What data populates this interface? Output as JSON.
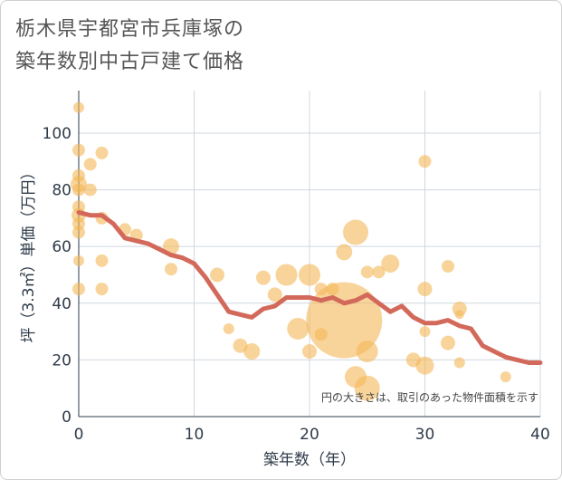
{
  "title_line1": "栃木県宇都宮市兵庫塚の",
  "title_line2": "築年数別中古戸建て価格",
  "chart_data": {
    "type": "scatter",
    "title": "栃木県宇都宮市兵庫塚の築年数別中古戸建て価格",
    "xlabel": "築年数（年）",
    "ylabel": "坪（3.3㎡）単価（万円）",
    "xlim": [
      0,
      40
    ],
    "ylim": [
      0,
      115
    ],
    "xticks": [
      0,
      10,
      20,
      30,
      40
    ],
    "yticks": [
      0,
      20,
      40,
      60,
      80,
      100
    ],
    "grid": true,
    "note": "円の大きさは、取引のあった物件面積を示す",
    "colors": {
      "bubble": "#f3b757",
      "line": "#d2695a",
      "grid": "#cfd8e0"
    },
    "series": [
      {
        "type": "bubble",
        "points": [
          {
            "x": 0,
            "y": 109,
            "s": 6
          },
          {
            "x": 0,
            "y": 94,
            "s": 7
          },
          {
            "x": 0,
            "y": 85,
            "s": 7
          },
          {
            "x": 0,
            "y": 82,
            "s": 9
          },
          {
            "x": 0,
            "y": 80,
            "s": 7
          },
          {
            "x": 0,
            "y": 74,
            "s": 7
          },
          {
            "x": 0,
            "y": 71,
            "s": 8
          },
          {
            "x": 0,
            "y": 68,
            "s": 7
          },
          {
            "x": 0,
            "y": 65,
            "s": 7
          },
          {
            "x": 0,
            "y": 55,
            "s": 6
          },
          {
            "x": 0,
            "y": 45,
            "s": 7
          },
          {
            "x": 1,
            "y": 89,
            "s": 7
          },
          {
            "x": 1,
            "y": 80,
            "s": 7
          },
          {
            "x": 2,
            "y": 93,
            "s": 7
          },
          {
            "x": 2,
            "y": 70,
            "s": 7
          },
          {
            "x": 2,
            "y": 55,
            "s": 7
          },
          {
            "x": 2,
            "y": 45,
            "s": 7
          },
          {
            "x": 4,
            "y": 66,
            "s": 7
          },
          {
            "x": 5,
            "y": 64,
            "s": 7
          },
          {
            "x": 8,
            "y": 60,
            "s": 9
          },
          {
            "x": 8,
            "y": 52,
            "s": 7
          },
          {
            "x": 12,
            "y": 50,
            "s": 8
          },
          {
            "x": 13,
            "y": 31,
            "s": 6
          },
          {
            "x": 14,
            "y": 25,
            "s": 8
          },
          {
            "x": 15,
            "y": 23,
            "s": 9
          },
          {
            "x": 16,
            "y": 49,
            "s": 8
          },
          {
            "x": 17,
            "y": 43,
            "s": 8
          },
          {
            "x": 18,
            "y": 50,
            "s": 12
          },
          {
            "x": 19,
            "y": 31,
            "s": 12
          },
          {
            "x": 20,
            "y": 50,
            "s": 12
          },
          {
            "x": 20,
            "y": 23,
            "s": 8
          },
          {
            "x": 21,
            "y": 45,
            "s": 7
          },
          {
            "x": 21,
            "y": 29,
            "s": 7
          },
          {
            "x": 22,
            "y": 45,
            "s": 7
          },
          {
            "x": 23,
            "y": 34,
            "s": 42
          },
          {
            "x": 23,
            "y": 58,
            "s": 9
          },
          {
            "x": 24,
            "y": 65,
            "s": 14
          },
          {
            "x": 24,
            "y": 14,
            "s": 12
          },
          {
            "x": 25,
            "y": 23,
            "s": 12
          },
          {
            "x": 25,
            "y": 10,
            "s": 14
          },
          {
            "x": 25,
            "y": 51,
            "s": 7
          },
          {
            "x": 26,
            "y": 51,
            "s": 7
          },
          {
            "x": 27,
            "y": 54,
            "s": 10
          },
          {
            "x": 29,
            "y": 20,
            "s": 8
          },
          {
            "x": 30,
            "y": 90,
            "s": 7
          },
          {
            "x": 30,
            "y": 45,
            "s": 8
          },
          {
            "x": 30,
            "y": 30,
            "s": 6
          },
          {
            "x": 30,
            "y": 18,
            "s": 10
          },
          {
            "x": 32,
            "y": 53,
            "s": 7
          },
          {
            "x": 32,
            "y": 26,
            "s": 8
          },
          {
            "x": 33,
            "y": 38,
            "s": 8
          },
          {
            "x": 33,
            "y": 36,
            "s": 5
          },
          {
            "x": 33,
            "y": 19,
            "s": 6
          },
          {
            "x": 37,
            "y": 14,
            "s": 6
          }
        ]
      },
      {
        "type": "line",
        "points": [
          [
            0,
            72
          ],
          [
            1,
            71
          ],
          [
            2,
            71
          ],
          [
            3,
            68
          ],
          [
            4,
            63
          ],
          [
            5,
            62
          ],
          [
            6,
            61
          ],
          [
            7,
            59
          ],
          [
            8,
            57
          ],
          [
            9,
            56
          ],
          [
            10,
            54
          ],
          [
            11,
            49
          ],
          [
            12,
            43
          ],
          [
            13,
            37
          ],
          [
            14,
            36
          ],
          [
            15,
            35
          ],
          [
            16,
            38
          ],
          [
            17,
            39
          ],
          [
            18,
            42
          ],
          [
            19,
            42
          ],
          [
            20,
            42
          ],
          [
            21,
            41
          ],
          [
            22,
            42
          ],
          [
            23,
            40
          ],
          [
            24,
            41
          ],
          [
            25,
            43
          ],
          [
            26,
            40
          ],
          [
            27,
            37
          ],
          [
            28,
            39
          ],
          [
            29,
            35
          ],
          [
            30,
            33
          ],
          [
            31,
            33
          ],
          [
            32,
            34
          ],
          [
            33,
            32
          ],
          [
            34,
            31
          ],
          [
            35,
            25
          ],
          [
            36,
            23
          ],
          [
            37,
            21
          ],
          [
            38,
            20
          ],
          [
            39,
            19
          ],
          [
            40,
            19
          ]
        ]
      }
    ]
  }
}
